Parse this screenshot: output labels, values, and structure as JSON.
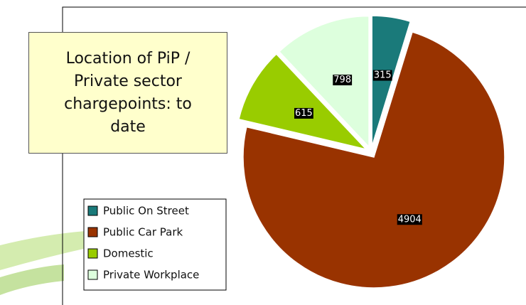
{
  "chart_data": {
    "type": "pie",
    "title": "Location of PiP / Private sector chargepoints: to date",
    "categories": [
      "Public On Street",
      "Public Car Park",
      "Domestic",
      "Private Workplace"
    ],
    "values": [
      315,
      4904,
      615,
      798
    ],
    "colors": [
      "#1a7a7a",
      "#993300",
      "#99cc00",
      "#ddffdd"
    ],
    "legend": "bottom-left"
  }
}
